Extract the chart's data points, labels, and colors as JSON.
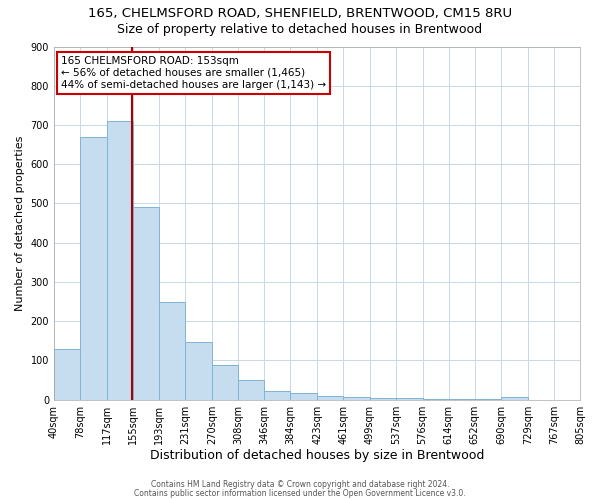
{
  "title1": "165, CHELMSFORD ROAD, SHENFIELD, BRENTWOOD, CM15 8RU",
  "title2": "Size of property relative to detached houses in Brentwood",
  "xlabel": "Distribution of detached houses by size in Brentwood",
  "ylabel": "Number of detached properties",
  "bar_edges": [
    40,
    78,
    117,
    155,
    193,
    231,
    270,
    308,
    346,
    384,
    423,
    461,
    499,
    537,
    576,
    614,
    652,
    690,
    729,
    767,
    805
  ],
  "bar_heights": [
    130,
    670,
    710,
    490,
    250,
    148,
    88,
    50,
    22,
    18,
    10,
    7,
    5,
    4,
    3,
    2,
    2,
    8,
    0,
    0,
    0
  ],
  "bar_color": "#c5ddef",
  "bar_edgecolor": "#7fb4d4",
  "grid_color": "#c8d8e8",
  "property_size": 153,
  "vline_color": "#aa0000",
  "annotation_title": "165 CHELMSFORD ROAD: 153sqm",
  "annotation_line2": "← 56% of detached houses are smaller (1,465)",
  "annotation_line3": "44% of semi-detached houses are larger (1,143) →",
  "annotation_box_color": "#cc0000",
  "annotation_bg": "#ffffff",
  "footer1": "Contains HM Land Registry data © Crown copyright and database right 2024.",
  "footer2": "Contains public sector information licensed under the Open Government Licence v3.0.",
  "ylim": [
    0,
    900
  ],
  "yticks": [
    0,
    100,
    200,
    300,
    400,
    500,
    600,
    700,
    800,
    900
  ],
  "background_color": "#ffffff",
  "title1_fontsize": 9.5,
  "title2_fontsize": 9.0,
  "tick_fontsize": 7.0,
  "ylabel_fontsize": 8.0,
  "xlabel_fontsize": 9.0,
  "footer_fontsize": 5.5,
  "ann_fontsize": 7.5
}
